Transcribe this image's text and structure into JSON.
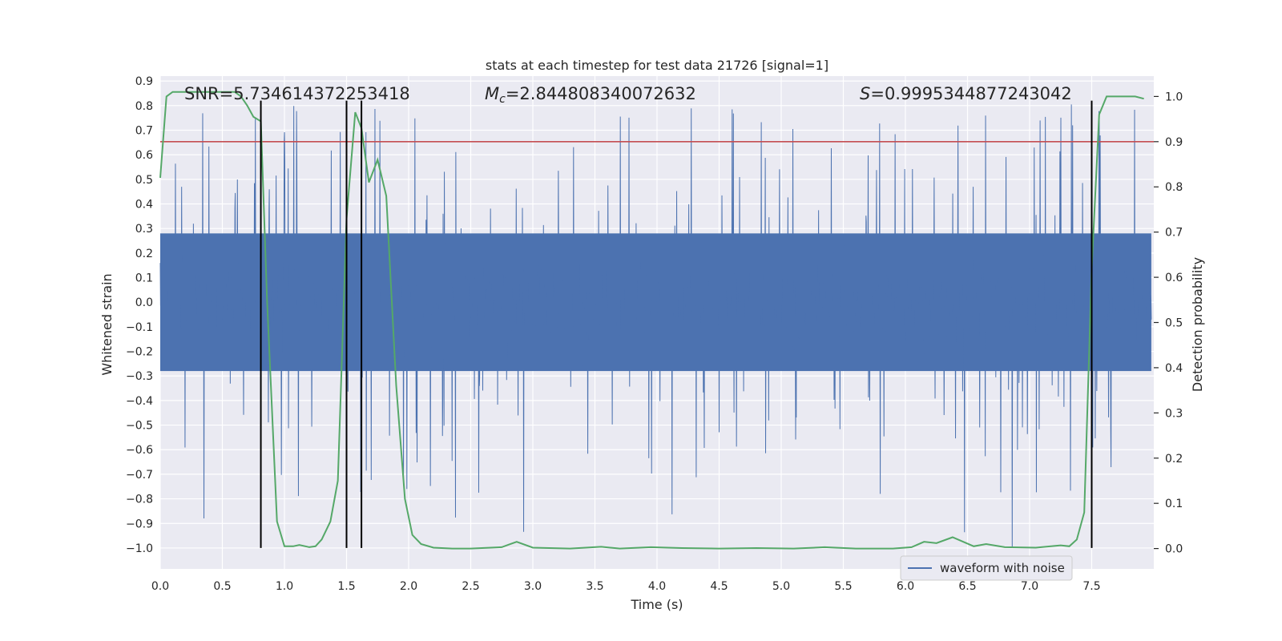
{
  "chart_data": {
    "type": "line",
    "title": "stats at each timestep for test data 21726 [signal=1]",
    "xlabel": "Time (s)",
    "ylabel_left": "Whitened strain",
    "ylabel_right": "Detection probability",
    "xlim": [
      0.0,
      8.0
    ],
    "ylim_left": [
      -1.085,
      0.92
    ],
    "ylim_right": [
      -0.045,
      1.045
    ],
    "x_ticks": [
      "0.0",
      "0.5",
      "1.0",
      "1.5",
      "2.0",
      "2.5",
      "3.0",
      "3.5",
      "4.0",
      "4.5",
      "5.0",
      "5.5",
      "6.0",
      "6.5",
      "7.0",
      "7.5"
    ],
    "y_left_ticks": [
      "0.9",
      "0.8",
      "0.7",
      "0.6",
      "0.5",
      "0.4",
      "0.3",
      "0.2",
      "0.1",
      "0.0",
      "−0.1",
      "−0.2",
      "−0.3",
      "−0.4",
      "−0.5",
      "−0.6",
      "−0.7",
      "−0.8",
      "−0.9",
      "−1.0"
    ],
    "y_right_ticks": [
      "1.0",
      "0.9",
      "0.8",
      "0.7",
      "0.6",
      "0.5",
      "0.4",
      "0.3",
      "0.2",
      "0.1",
      "0.0"
    ],
    "grid": true,
    "legend": {
      "position": "bottom-right",
      "entries": [
        "waveform with noise"
      ]
    },
    "annotations": {
      "snr_label": "SNR=5.734614372253418",
      "mc_symbol": "M",
      "mc_subscript": "c",
      "mc_value": "=2.844808340072632",
      "s_symbol": "S",
      "s_value": "=0.9995344877243042"
    },
    "threshold_right": 0.9,
    "event_lines_x": [
      0.81,
      1.5,
      1.62,
      7.5
    ],
    "event_lines_y_left": [
      -1.0,
      0.82
    ],
    "series": [
      {
        "name": "waveform with noise",
        "color": "#4c72b0",
        "axis": "left",
        "description_envelope": {
          "core_amplitude": 0.28,
          "peak_max": 0.82,
          "trough_min": -1.0,
          "samples_shown": "dense"
        }
      },
      {
        "axis": "right",
        "color": "#55a868",
        "x": [
          0.0,
          0.05,
          0.1,
          0.2,
          0.3,
          0.4,
          0.5,
          0.6,
          0.65,
          0.7,
          0.75,
          0.81,
          0.86,
          0.94,
          1.0,
          1.07,
          1.12,
          1.2,
          1.25,
          1.3,
          1.37,
          1.43,
          1.5,
          1.57,
          1.62,
          1.68,
          1.75,
          1.82,
          1.9,
          1.97,
          2.03,
          2.1,
          2.2,
          2.35,
          2.5,
          2.75,
          2.87,
          3.0,
          3.3,
          3.55,
          3.7,
          3.95,
          4.2,
          4.5,
          4.8,
          5.1,
          5.35,
          5.6,
          5.9,
          6.05,
          6.15,
          6.25,
          6.38,
          6.55,
          6.65,
          6.8,
          7.05,
          7.25,
          7.32,
          7.38,
          7.44,
          7.5,
          7.56,
          7.62,
          7.68,
          7.75,
          7.85,
          7.92
        ],
        "values": [
          0.82,
          1.0,
          1.01,
          1.01,
          1.01,
          1.01,
          1.01,
          1.01,
          1.0,
          0.98,
          0.955,
          0.945,
          0.55,
          0.06,
          0.005,
          0.005,
          0.008,
          0.003,
          0.005,
          0.02,
          0.06,
          0.15,
          0.73,
          0.965,
          0.93,
          0.81,
          0.86,
          0.78,
          0.36,
          0.11,
          0.03,
          0.01,
          0.002,
          0.0,
          0.0,
          0.003,
          0.015,
          0.002,
          0.0,
          0.004,
          0.0,
          0.003,
          0.001,
          0.0,
          0.001,
          0.0,
          0.003,
          0.0,
          0.0,
          0.003,
          0.015,
          0.012,
          0.025,
          0.005,
          0.01,
          0.003,
          0.002,
          0.007,
          0.005,
          0.02,
          0.08,
          0.62,
          0.96,
          1.0,
          1.0,
          1.0,
          1.0,
          0.995
        ]
      }
    ]
  }
}
